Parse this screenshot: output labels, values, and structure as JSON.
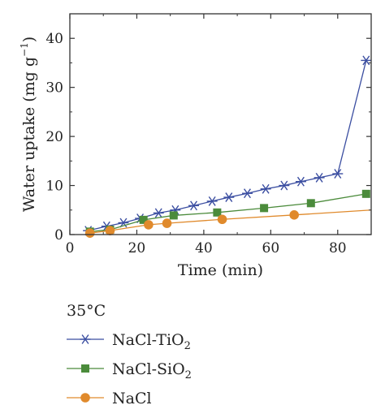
{
  "chart_data": {
    "type": "line",
    "xlabel": "Time (min)",
    "ylabel_main": "Water uptake (mg g",
    "ylabel_sup": "−1",
    "ylabel_close": ")",
    "xlim": [
      0,
      90
    ],
    "ylim": [
      0,
      45
    ],
    "xticks": [
      0,
      20,
      40,
      60,
      80
    ],
    "yticks": [
      0,
      10,
      20,
      30,
      40
    ],
    "grid": false,
    "legend_position": "below",
    "legend_title": "35°C",
    "series": [
      {
        "name": "NaCl-TiO2",
        "name_base": "NaCl-TiO",
        "name_sub": "2",
        "color": "#3b4ea1",
        "marker": "asterisk",
        "x": [
          5.5,
          11,
          16,
          21,
          26.5,
          31.5,
          37,
          42.5,
          47.5,
          53,
          58.5,
          64,
          69,
          74.5,
          80,
          88.5
        ],
        "y": [
          0.8,
          1.7,
          2.4,
          3.3,
          4.4,
          5.0,
          5.9,
          6.8,
          7.6,
          8.4,
          9.3,
          10.0,
          10.8,
          11.6,
          12.4,
          35.5
        ]
      },
      {
        "name": "NaCl-SiO2",
        "name_base": "NaCl-SiO",
        "name_sub": "2",
        "color": "#4b8b3b",
        "marker": "square",
        "x": [
          6,
          12,
          22,
          31,
          44,
          58,
          72,
          88.5
        ],
        "y": [
          0.6,
          1.0,
          3.0,
          3.9,
          4.5,
          5.4,
          6.4,
          8.3
        ]
      },
      {
        "name": "NaCl",
        "name_base": "NaCl",
        "name_sub": "",
        "color": "#e08a2c",
        "marker": "circle",
        "x": [
          6,
          12,
          23.5,
          29,
          45.5,
          67,
          90
        ],
        "y": [
          0.3,
          0.8,
          2.0,
          2.3,
          3.1,
          4.0,
          5.0
        ],
        "marker_count": 6
      }
    ]
  }
}
